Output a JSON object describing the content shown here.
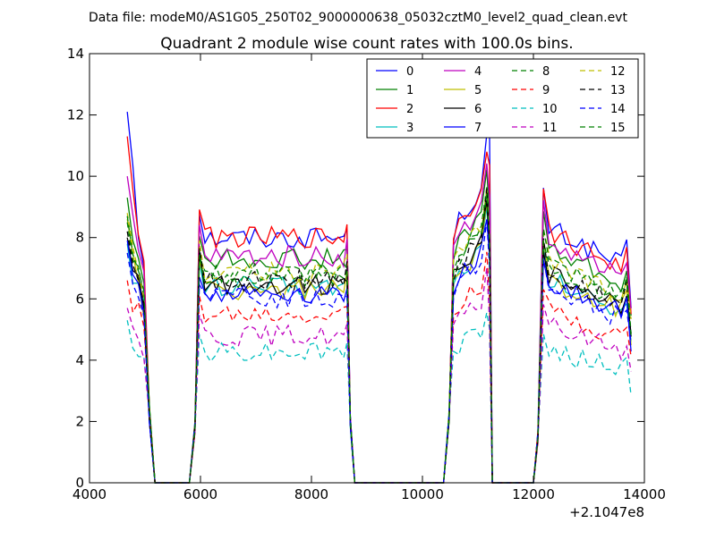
{
  "figure": {
    "suptitle": "Data file: modeM0/AS1G05_250T02_9000000638_05032cztM0_level2_quad_clean.evt"
  },
  "chart_data": {
    "type": "line",
    "title": "Quadrant 2 module wise count rates with 100.0s bins.",
    "xlabel": "",
    "ylabel": "",
    "x_offset_label": "+2.1047e8",
    "xlim": [
      4000,
      14000
    ],
    "ylim": [
      0,
      14
    ],
    "xticks": [
      "4000",
      "6000",
      "8000",
      "10000",
      "12000",
      "14000"
    ],
    "yticks": [
      "0",
      "2",
      "4",
      "6",
      "8",
      "10",
      "12",
      "14"
    ],
    "grid": false,
    "legend_position": "top-right",
    "series": [
      {
        "name": "0",
        "color": "#0000ff",
        "dash": "solid",
        "level_a": 8.0,
        "level_b": 8.3,
        "start": 12.1
      },
      {
        "name": "1",
        "color": "#008000",
        "dash": "solid",
        "level_a": 7.3,
        "level_b": 7.6,
        "start": 9.3
      },
      {
        "name": "2",
        "color": "#ff0000",
        "dash": "solid",
        "level_a": 8.0,
        "level_b": 8.2,
        "start": 11.3
      },
      {
        "name": "3",
        "color": "#00bfbf",
        "dash": "solid",
        "level_a": 6.4,
        "level_b": 6.6,
        "start": 7.8
      },
      {
        "name": "4",
        "color": "#bf00bf",
        "dash": "solid",
        "level_a": 7.4,
        "level_b": 7.8,
        "start": 10.0
      },
      {
        "name": "5",
        "color": "#bfbf00",
        "dash": "solid",
        "level_a": 6.3,
        "level_b": 6.6,
        "start": 8.6
      },
      {
        "name": "6",
        "color": "#000000",
        "dash": "solid",
        "level_a": 6.5,
        "level_b": 6.8,
        "start": 8.0
      },
      {
        "name": "7",
        "color": "#0000ff",
        "dash": "solid",
        "level_a": 6.2,
        "level_b": 6.5,
        "start": 7.9
      },
      {
        "name": "8",
        "color": "#008000",
        "dash": "dashed",
        "level_a": 6.7,
        "level_b": 7.0,
        "start": 8.5
      },
      {
        "name": "9",
        "color": "#ff0000",
        "dash": "dashed",
        "level_a": 5.5,
        "level_b": 5.6,
        "start": 6.6
      },
      {
        "name": "10",
        "color": "#00bfbf",
        "dash": "dashed",
        "level_a": 4.3,
        "level_b": 4.3,
        "start": 5.3
      },
      {
        "name": "11",
        "color": "#bf00bf",
        "dash": "dashed",
        "level_a": 4.8,
        "level_b": 5.1,
        "start": 5.7
      },
      {
        "name": "12",
        "color": "#bfbf00",
        "dash": "dashed",
        "level_a": 6.9,
        "level_b": 7.2,
        "start": 8.8
      },
      {
        "name": "13",
        "color": "#000000",
        "dash": "dashed",
        "level_a": 6.6,
        "level_b": 6.9,
        "start": 8.2
      },
      {
        "name": "14",
        "color": "#0000ff",
        "dash": "dashed",
        "level_a": 6.0,
        "level_b": 6.3,
        "start": 7.5
      },
      {
        "name": "15",
        "color": "#008000",
        "dash": "dashed",
        "level_a": 6.8,
        "level_b": 7.1,
        "start": 8.7
      }
    ]
  }
}
